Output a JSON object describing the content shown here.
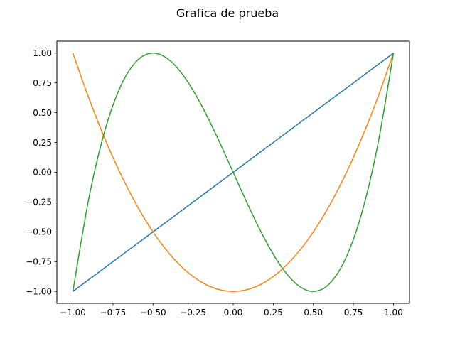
{
  "chart_data": {
    "type": "line",
    "title": "Grafica de prueba",
    "xlabel": "",
    "ylabel": "",
    "xlim": [
      -1.1,
      1.1
    ],
    "ylim": [
      -1.1,
      1.1
    ],
    "grid": false,
    "xticks": [
      -1.0,
      -0.75,
      -0.5,
      -0.25,
      0.0,
      0.25,
      0.5,
      0.75,
      1.0
    ],
    "xtick_labels": [
      "−1.00",
      "−0.75",
      "−0.50",
      "−0.25",
      "0.00",
      "0.25",
      "0.50",
      "0.75",
      "1.00"
    ],
    "yticks": [
      -1.0,
      -0.75,
      -0.5,
      -0.25,
      0.0,
      0.25,
      0.5,
      0.75,
      1.0
    ],
    "ytick_labels": [
      "−1.00",
      "−0.75",
      "−0.50",
      "−0.25",
      "0.00",
      "0.25",
      "0.50",
      "0.75",
      "1.00"
    ],
    "series": [
      {
        "color": "#1f77b4",
        "x": [
          -1.0,
          -0.5,
          0.0,
          0.5,
          1.0
        ],
        "y": [
          -1.0,
          -0.5,
          0.0,
          0.5,
          1.0
        ]
      },
      {
        "color": "#ff7f0e",
        "x": [
          -1.0,
          -0.9,
          -0.8,
          -0.7,
          -0.6,
          -0.5,
          -0.4,
          -0.3,
          -0.2,
          -0.1,
          0.0,
          0.1,
          0.2,
          0.3,
          0.4,
          0.5,
          0.6,
          0.7,
          0.8,
          0.9,
          1.0
        ],
        "y": [
          1.0,
          0.62,
          0.28,
          -0.02,
          -0.28,
          -0.5,
          -0.68,
          -0.82,
          -0.92,
          -0.98,
          -1.0,
          -0.98,
          -0.92,
          -0.82,
          -0.68,
          -0.5,
          -0.28,
          -0.02,
          0.28,
          0.62,
          1.0
        ]
      },
      {
        "color": "#2ca02c",
        "x": [
          -1.0,
          -0.9,
          -0.8,
          -0.7,
          -0.6,
          -0.5,
          -0.4,
          -0.3,
          -0.2,
          -0.1,
          0.0,
          0.1,
          0.2,
          0.3,
          0.4,
          0.5,
          0.6,
          0.7,
          0.8,
          0.9,
          1.0
        ],
        "y": [
          -1.0,
          -0.216,
          0.352,
          0.728,
          0.936,
          1.0,
          0.944,
          0.792,
          0.568,
          0.296,
          0.0,
          -0.296,
          -0.568,
          -0.792,
          -0.944,
          -1.0,
          -0.936,
          -0.728,
          -0.352,
          0.216,
          1.0
        ]
      }
    ]
  }
}
